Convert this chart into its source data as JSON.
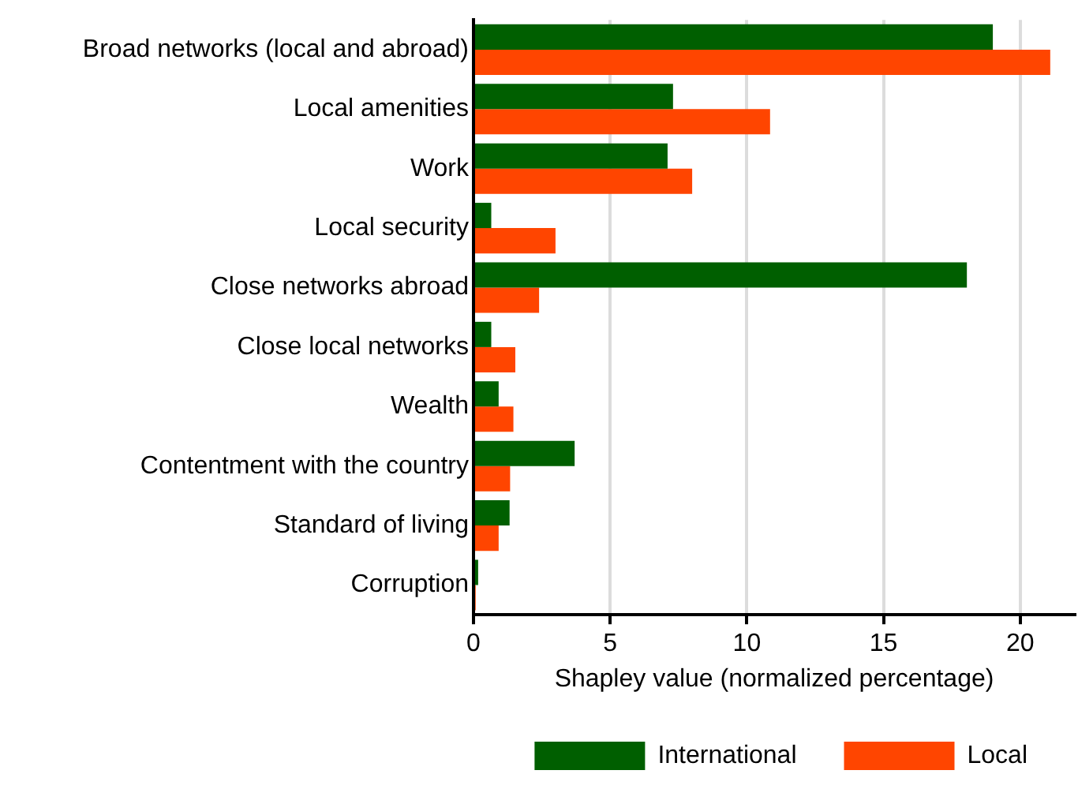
{
  "chart_data": {
    "type": "bar",
    "orientation": "horizontal",
    "xlabel": "Shapley value (normalized percentage)",
    "categories": [
      "Broad networks (local and abroad)",
      "Local amenities",
      "Work",
      "Local security",
      "Close networks abroad",
      "Close local networks",
      "Wealth",
      "Contentment with the country",
      "Standard of living",
      "Corruption"
    ],
    "series": [
      {
        "name": "International",
        "color": "#005f00",
        "values": [
          19.0,
          7.3,
          7.1,
          0.65,
          18.05,
          0.65,
          0.92,
          3.7,
          1.32,
          0.17
        ]
      },
      {
        "name": "Local",
        "color": "#ff4500",
        "values": [
          21.1,
          10.85,
          8.0,
          3.0,
          2.4,
          1.53,
          1.46,
          1.34,
          0.92,
          0.08
        ]
      }
    ],
    "xlim": [
      0,
      22
    ],
    "xticks": [
      0,
      5,
      10,
      15,
      20
    ],
    "grid": "x",
    "legend": "bottom"
  }
}
